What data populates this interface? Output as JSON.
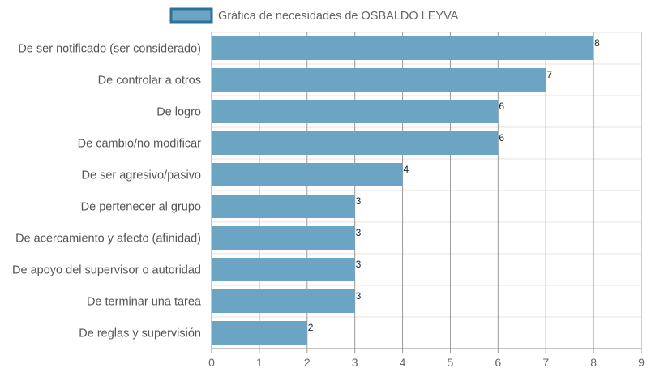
{
  "chart_data": {
    "type": "bar",
    "orientation": "horizontal",
    "series": [
      {
        "name": "Gráfica de necesidades de OSBALDO LEYVA",
        "color": "#6ba5c3",
        "border_color": "#2d7099",
        "values": [
          8,
          7,
          6,
          6,
          4,
          3,
          3,
          3,
          3,
          2
        ]
      }
    ],
    "categories": [
      "De ser notificado (ser considerado)",
      "De controlar a otros",
      "De logro",
      "De cambio/no modificar",
      "De ser agresivo/pasivo",
      "De pertenecer al grupo",
      "De acercamiento y afecto (afinidad)",
      "De apoyo del supervisor o autoridad",
      "De terminar una tarea",
      "De reglas y supervisión"
    ],
    "xlim": [
      0,
      9
    ],
    "xticks": [
      "0",
      "1",
      "2",
      "3",
      "4",
      "5",
      "6",
      "7",
      "8",
      "9"
    ],
    "grid": true,
    "legend_position": "top",
    "data_labels": true,
    "title": "",
    "xlabel": "",
    "ylabel": ""
  }
}
